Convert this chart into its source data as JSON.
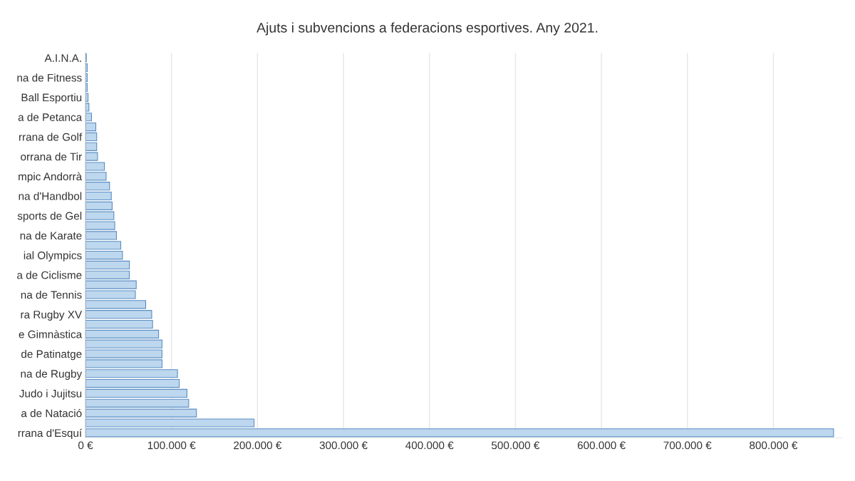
{
  "chart_data": {
    "type": "bar",
    "orientation": "horizontal",
    "title": "Ajuts i subvencions a federacions esportives. Any 2021.",
    "categories": [
      "A.I.N.A.",
      null,
      "na de Fitness",
      null,
      "Ball Esportiu",
      null,
      "a de Petanca",
      null,
      "rrana de Golf",
      null,
      "orrana de Tir",
      null,
      "mpic Andorrà",
      null,
      "na d'Handbol",
      null,
      "sports de Gel",
      null,
      "na de Karate",
      null,
      "ial Olympics",
      null,
      "a de Ciclisme",
      null,
      "na de Tennis",
      null,
      "ra Rugby XV",
      null,
      "e Gimnàstica",
      null,
      "de Patinatge",
      null,
      "na de Rugby",
      null,
      "Judo i Jujitsu",
      null,
      "a de Natació",
      null,
      "rrana d'Esquí"
    ],
    "values": [
      1000,
      2000,
      2000,
      2000,
      3000,
      4000,
      7000,
      12000,
      13000,
      13000,
      14000,
      22000,
      24000,
      28000,
      30000,
      31000,
      33000,
      34000,
      36000,
      41000,
      43000,
      51000,
      51000,
      59000,
      58000,
      70000,
      77000,
      78000,
      85000,
      89000,
      89000,
      89000,
      107000,
      109000,
      118000,
      120000,
      129000,
      196000,
      870000
    ],
    "color": "#bdd7ee",
    "xlim": [
      0,
      880000
    ],
    "xticks": [
      {
        "value": 0,
        "label": "0 €"
      },
      {
        "value": 100000,
        "label": "100.000 €"
      },
      {
        "value": 200000,
        "label": "200.000 €"
      },
      {
        "value": 300000,
        "label": "300.000 €"
      },
      {
        "value": 400000,
        "label": "400.000 €"
      },
      {
        "value": 500000,
        "label": "500.000 €"
      },
      {
        "value": 600000,
        "label": "600.000 €"
      },
      {
        "value": 700000,
        "label": "700.000 €"
      },
      {
        "value": 800000,
        "label": "800.000 €"
      }
    ],
    "grid": "x",
    "legend": false
  }
}
